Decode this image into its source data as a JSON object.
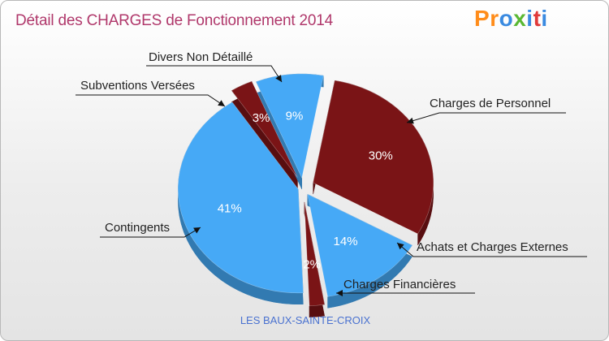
{
  "header": {
    "title": "Détail des CHARGES de Fonctionnement 2014",
    "logo": "Proxiti",
    "logo_colors": [
      "#ff8c1a",
      "#ff8c1a",
      "#3a8ae0",
      "#5ab833",
      "#3a8ae0",
      "#e03a3a",
      "#3a8ae0"
    ]
  },
  "footer": {
    "commune": "LES BAUX-SAINTE-CROIX"
  },
  "colors": {
    "dark_red": "#7a1416",
    "blue": "#46a9f6",
    "title": "#b0386b",
    "commune": "#4a72d0"
  },
  "chart_data": {
    "type": "pie",
    "title": "Détail des CHARGES de Fonctionnement 2014",
    "slices": [
      {
        "label": "Charges de Personnel",
        "value": 30,
        "pct_label": "30%",
        "color": "#7a1416"
      },
      {
        "label": "Achats et Charges Externes",
        "value": 14,
        "pct_label": "14%",
        "color": "#46a9f6"
      },
      {
        "label": "Charges Financières",
        "value": 2,
        "pct_label": "2%",
        "color": "#7a1416"
      },
      {
        "label": "Contingents",
        "value": 41,
        "pct_label": "41%",
        "color": "#46a9f6"
      },
      {
        "label": "Subventions Versées",
        "value": 3,
        "pct_label": "3%",
        "color": "#7a1416"
      },
      {
        "label": "Divers Non Détaillé",
        "value": 9,
        "pct_label": "9%",
        "color": "#46a9f6"
      }
    ]
  }
}
